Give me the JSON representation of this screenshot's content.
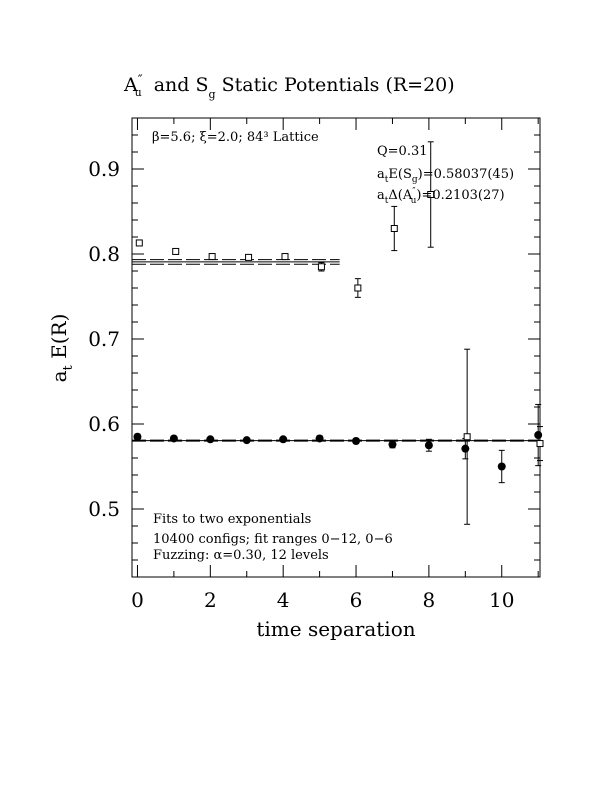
{
  "chart_data": {
    "type": "scatter",
    "title_parts": {
      "a": "A",
      "a_sup": "″",
      "a_sub": "u",
      "mid": " and S",
      "s_sub": "g",
      "rest": " Static Potentials (R=20)"
    },
    "xlabel": "time separation",
    "ylabel_main": "a",
    "ylabel_sub": "t",
    "ylabel_rest": " E(R)",
    "xlim": [
      -0.15,
      11.05
    ],
    "ylim": [
      0.42,
      0.96
    ],
    "xticks": [
      "0",
      "2",
      "4",
      "6",
      "8",
      "10"
    ],
    "yticks": [
      "0.5",
      "0.6",
      "0.7",
      "0.8",
      "0.9"
    ],
    "lattice_info": "β=5.6; ξ=2.0; 84³ Lattice",
    "fit_info": {
      "q": "Q=0.31",
      "es_pre": "a",
      "es_sub": "t",
      "es_mid": "E(S",
      "es_sub2": "g",
      "es_post": ")=0.58037(45)",
      "da_pre": "a",
      "da_sub": "t",
      "da_mid": "Δ(A",
      "da_sup": "″",
      "da_sub2": "u",
      "da_post": ")=0.2103(27)"
    },
    "notes": [
      "Fits to two exponentials",
      "10400 configs; fit ranges 0−12, 0−6",
      "Fuzzing: α=0.30, 12 levels"
    ],
    "series": [
      {
        "marker": "filled-circle",
        "points": [
          {
            "x": 0,
            "y": 0.585,
            "err": 0.003
          },
          {
            "x": 1,
            "y": 0.583,
            "err": 0.002
          },
          {
            "x": 2,
            "y": 0.582,
            "err": 0.002
          },
          {
            "x": 3,
            "y": 0.581,
            "err": 0.002
          },
          {
            "x": 4,
            "y": 0.582,
            "err": 0.002
          },
          {
            "x": 5,
            "y": 0.583,
            "err": 0.003
          },
          {
            "x": 6,
            "y": 0.58,
            "err": 0.003
          },
          {
            "x": 7,
            "y": 0.576,
            "err": 0.004
          },
          {
            "x": 8,
            "y": 0.575,
            "err": 0.007
          },
          {
            "x": 9,
            "y": 0.571,
            "err": 0.012
          },
          {
            "x": 10,
            "y": 0.55,
            "err": 0.019
          },
          {
            "x": 11,
            "y": 0.587,
            "err": 0.036
          }
        ]
      },
      {
        "marker": "open-square",
        "points": [
          {
            "x": 0.05,
            "y": 0.813,
            "err": 0.003
          },
          {
            "x": 1.05,
            "y": 0.803,
            "err": 0.003
          },
          {
            "x": 2.05,
            "y": 0.797,
            "err": 0.002
          },
          {
            "x": 3.05,
            "y": 0.796,
            "err": 0.003
          },
          {
            "x": 4.05,
            "y": 0.797,
            "err": 0.003
          },
          {
            "x": 5.05,
            "y": 0.785,
            "err": 0.005
          },
          {
            "x": 6.05,
            "y": 0.76,
            "err": 0.011
          },
          {
            "x": 7.05,
            "y": 0.83,
            "err": 0.026
          },
          {
            "x": 8.05,
            "y": 0.87,
            "err": 0.062
          },
          {
            "x": 9.05,
            "y": 0.585,
            "err": 0.103
          },
          {
            "x": 11.05,
            "y": 0.577,
            "err": 0.02
          }
        ]
      }
    ],
    "fit_lines": [
      {
        "y": 0.5804,
        "x0": -0.15,
        "x1": 11.05,
        "style": "solid"
      },
      {
        "y": 0.5798,
        "x0": -0.15,
        "x1": 11.05,
        "style": "dashed"
      },
      {
        "y": 0.581,
        "x0": -0.15,
        "x1": 11.05,
        "style": "dashed"
      },
      {
        "y": 0.7907,
        "x0": -0.15,
        "x1": 5.55,
        "style": "solid"
      },
      {
        "y": 0.788,
        "x0": -0.15,
        "x1": 5.55,
        "style": "dashed"
      },
      {
        "y": 0.7934,
        "x0": -0.15,
        "x1": 5.55,
        "style": "dashed"
      }
    ]
  }
}
